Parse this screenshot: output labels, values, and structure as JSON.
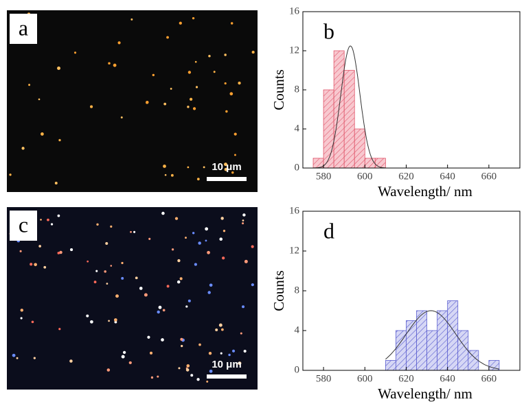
{
  "images": [
    {
      "label": "a",
      "scale_bar": "10 μm"
    },
    {
      "label": "c",
      "scale_bar": "10 μm"
    }
  ],
  "chart_data": [
    {
      "type": "histogram",
      "label": "b",
      "xlabel": "Wavelength/ nm",
      "ylabel": "Counts",
      "bins": [
        575,
        580,
        585,
        590,
        595,
        600,
        605,
        610
      ],
      "counts": [
        1,
        8,
        12,
        10,
        4,
        1,
        1
      ],
      "color": "#e0556a",
      "fit": {
        "mean": 593,
        "sigma": 4.6,
        "amplitude": 12.5
      },
      "xlim": [
        570,
        675
      ],
      "ylim": [
        0,
        16
      ],
      "xticks": [
        580,
        600,
        620,
        640,
        660
      ],
      "yticks": [
        0,
        4,
        8,
        12,
        16
      ]
    },
    {
      "type": "histogram",
      "label": "d",
      "xlabel": "Wavelength/ nm",
      "ylabel": "Counts",
      "bins": [
        610,
        615,
        620,
        625,
        630,
        635,
        640,
        645,
        650,
        655,
        660,
        665
      ],
      "counts": [
        1,
        4,
        5,
        6,
        4,
        6,
        7,
        4,
        2,
        0,
        1
      ],
      "color": "#5b5fd0",
      "fit": {
        "mean": 632,
        "sigma": 12,
        "amplitude": 6
      },
      "xlim": [
        570,
        675
      ],
      "ylim": [
        0,
        16
      ],
      "xticks": [
        580,
        600,
        620,
        640,
        660
      ],
      "yticks": [
        0,
        4,
        8,
        12,
        16
      ]
    }
  ]
}
